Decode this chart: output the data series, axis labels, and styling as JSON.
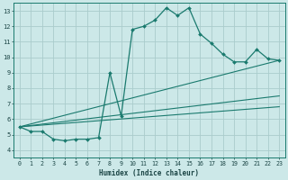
{
  "xlabel": "Humidex (Indice chaleur)",
  "ylabel": "",
  "xlim": [
    -0.5,
    23.5
  ],
  "ylim": [
    3.5,
    13.5
  ],
  "xticks": [
    0,
    1,
    2,
    3,
    4,
    5,
    6,
    7,
    8,
    9,
    10,
    11,
    12,
    13,
    14,
    15,
    16,
    17,
    18,
    19,
    20,
    21,
    22,
    23
  ],
  "yticks": [
    4,
    5,
    6,
    7,
    8,
    9,
    10,
    11,
    12,
    13
  ],
  "background_color": "#cce8e8",
  "grid_color": "#aacccc",
  "line_color": "#1a7a6e",
  "series": [
    {
      "x": [
        0,
        1,
        2,
        3,
        4,
        5,
        6,
        7,
        8,
        9,
        10,
        11,
        12,
        13,
        14,
        15,
        16,
        17,
        18,
        19,
        20,
        21,
        22,
        23
      ],
      "y": [
        5.5,
        5.2,
        5.2,
        4.7,
        4.6,
        4.7,
        4.7,
        4.8,
        9.0,
        6.2,
        11.8,
        12.0,
        12.4,
        13.2,
        12.7,
        13.2,
        11.5,
        10.9,
        10.2,
        9.7,
        9.7,
        10.5,
        9.9,
        9.8
      ]
    },
    {
      "x": [
        0,
        23
      ],
      "y": [
        5.5,
        9.8
      ]
    },
    {
      "x": [
        0,
        23
      ],
      "y": [
        5.5,
        7.5
      ]
    },
    {
      "x": [
        0,
        23
      ],
      "y": [
        5.5,
        6.8
      ]
    }
  ]
}
